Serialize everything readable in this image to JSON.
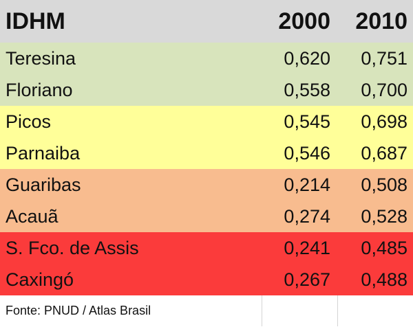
{
  "chart_data": {
    "type": "table",
    "columns": [
      "IDHM",
      "2000",
      "2010"
    ],
    "rows": [
      {
        "name": "Teresina",
        "v2000": "0,620",
        "v2010": "0,751",
        "color": "#d8e4bc"
      },
      {
        "name": "Floriano",
        "v2000": "0,558",
        "v2010": "0,700",
        "color": "#d8e4bc"
      },
      {
        "name": "Picos",
        "v2000": "0,545",
        "v2010": "0,698",
        "color": "#ffff99"
      },
      {
        "name": "Parnaiba",
        "v2000": "0,546",
        "v2010": "0,687",
        "color": "#ffff99"
      },
      {
        "name": "Guaribas",
        "v2000": "0,214",
        "v2010": "0,508",
        "color": "#f8bc8f"
      },
      {
        "name": "Acauã",
        "v2000": "0,274",
        "v2010": "0,528",
        "color": "#f8bc8f"
      },
      {
        "name": "S. Fco. de Assis",
        "v2000": "0,241",
        "v2010": "0,485",
        "color": "#fb3b3b"
      },
      {
        "name": "Caxingó",
        "v2000": "0,267",
        "v2010": "0,488",
        "color": "#fb3b3b"
      }
    ],
    "source": "Fonte: PNUD /  Atlas Brasil"
  }
}
